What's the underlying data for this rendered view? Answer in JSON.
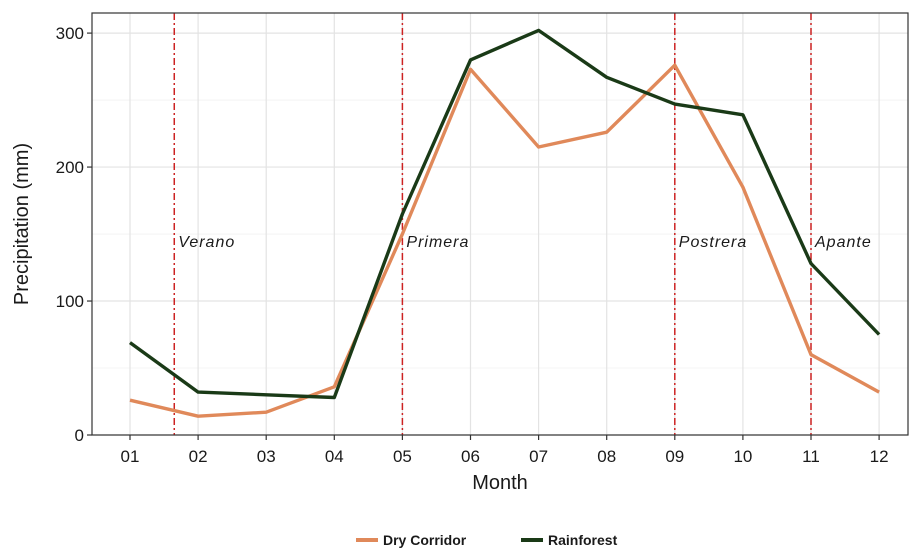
{
  "chart_data": {
    "type": "line",
    "xlabel": "Month",
    "ylabel": "Precipitation (mm)",
    "categories": [
      "01",
      "02",
      "03",
      "04",
      "05",
      "06",
      "07",
      "08",
      "09",
      "10",
      "11",
      "12"
    ],
    "ylim": [
      0,
      315
    ],
    "yticks": [
      0,
      100,
      200,
      300
    ],
    "grid": true,
    "legend_position": "bottom",
    "series": [
      {
        "name": "Dry Corridor",
        "color": "#e0895a",
        "values": [
          26,
          14,
          17,
          36,
          150,
          273,
          215,
          226,
          276,
          185,
          60,
          32
        ]
      },
      {
        "name": "Rainforest",
        "color": "#1a3a17",
        "values": [
          69,
          32,
          30,
          28,
          165,
          280,
          302,
          267,
          247,
          239,
          128,
          75
        ]
      }
    ],
    "seasons": [
      {
        "label": "Verano",
        "x": 1.65
      },
      {
        "label": "Primera",
        "x": 5.0
      },
      {
        "label": "Postrera",
        "x": 9.0
      },
      {
        "label": "Apante",
        "x": 11.0
      }
    ],
    "season_line_color": "#cc2222"
  }
}
